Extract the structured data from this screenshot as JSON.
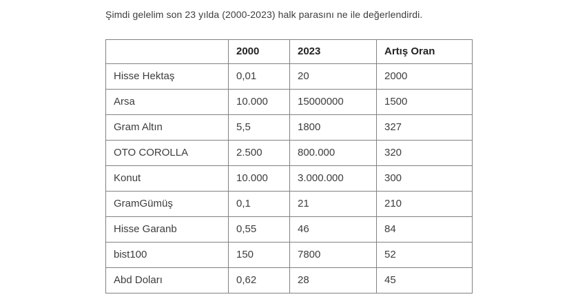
{
  "page": {
    "title": "Şimdi gelelim son 23 yılda (2000-2023) halk parasını ne ile değerlendirdi."
  },
  "table": {
    "columns": [
      "",
      "2000",
      "2023",
      "Artış Oran"
    ],
    "rows": [
      [
        "Hisse Hektaş",
        "0,01",
        "20",
        "2000"
      ],
      [
        "Arsa",
        "10.000",
        "15000000",
        "1500"
      ],
      [
        "Gram Altın",
        "5,5",
        "1800",
        "327"
      ],
      [
        "OTO COROLLA",
        "2.500",
        "800.000",
        "320"
      ],
      [
        "Konut",
        "10.000",
        "3.000.000",
        "300"
      ],
      [
        "GramGümüş",
        "0,1",
        "21",
        "210"
      ],
      [
        "Hisse Garanb",
        "0,55",
        "46",
        "84"
      ],
      [
        "bist100",
        "150",
        "7800",
        "52"
      ],
      [
        "Abd Doları",
        "0,62",
        "28",
        "45"
      ]
    ]
  },
  "colors": {
    "text": "#3d3d3d",
    "header_text": "#232323",
    "border": "#808080",
    "background": "#ffffff"
  }
}
